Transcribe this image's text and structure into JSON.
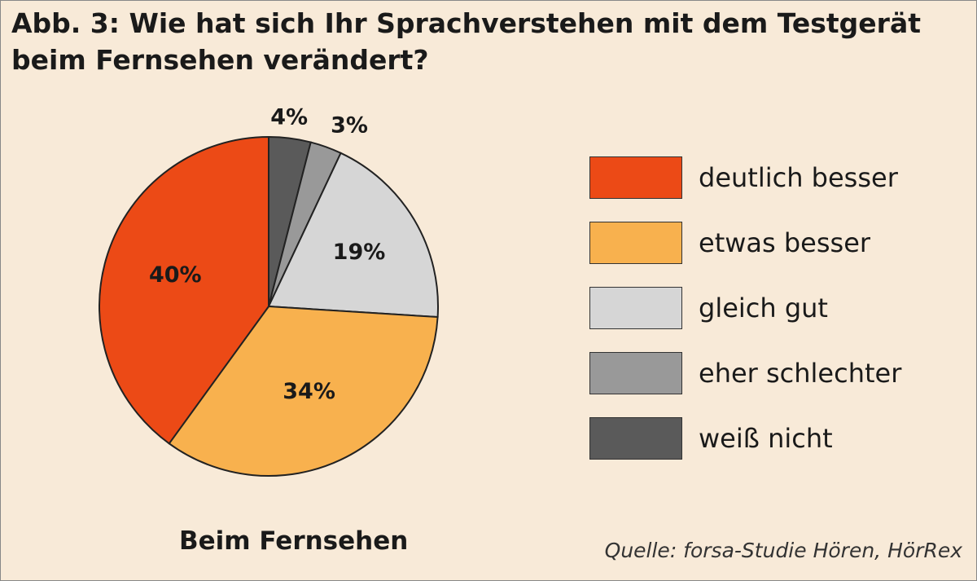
{
  "chart_data": {
    "type": "pie",
    "title": "Abb. 3: Wie hat sich Ihr Sprachverstehen mit dem Testgerät beim Fernsehen verändert?",
    "subtitle": "Beim Fernsehen",
    "source": "Quelle: forsa-Studie Hören, HörRex",
    "slices": [
      {
        "label": "weiß nicht",
        "value": 4,
        "display": "4%",
        "color": "#5a5a5a"
      },
      {
        "label": "eher schlechter",
        "value": 3,
        "display": "3%",
        "color": "#999999"
      },
      {
        "label": "gleich gut",
        "value": 19,
        "display": "19%",
        "color": "#d6d6d6"
      },
      {
        "label": "etwas besser",
        "value": 34,
        "display": "34%",
        "color": "#f8b14e"
      },
      {
        "label": "deutlich besser",
        "value": 40,
        "display": "40%",
        "color": "#ec4a16"
      }
    ],
    "legend": {
      "position": "right",
      "items": [
        "deutlich besser",
        "etwas besser",
        "gleich gut",
        "eher schlechter",
        "weiß nicht"
      ]
    }
  }
}
